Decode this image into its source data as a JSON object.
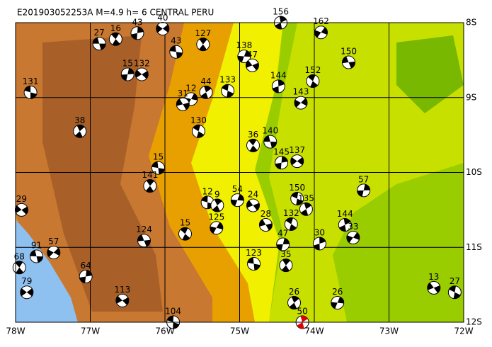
{
  "chart_data": {
    "type": "focal-map",
    "title": "E201903052253A M=4.9 h= 6 CENTRAL PERU",
    "xlim": [
      -78,
      -72
    ],
    "ylim": [
      -12,
      -8
    ],
    "xticks": [
      {
        "value": -78,
        "label": "78W"
      },
      {
        "value": -77,
        "label": "77W"
      },
      {
        "value": -76,
        "label": "76W"
      },
      {
        "value": -75,
        "label": "75W"
      },
      {
        "value": -74,
        "label": "74W"
      },
      {
        "value": -73,
        "label": "73W"
      },
      {
        "value": -72,
        "label": "72W"
      }
    ],
    "yticks": [
      {
        "value": -8,
        "label": "8S"
      },
      {
        "value": -9,
        "label": "9S"
      },
      {
        "value": -10,
        "label": "10S"
      },
      {
        "value": -11,
        "label": "11S"
      },
      {
        "value": -12,
        "label": "12S"
      }
    ],
    "grid": true,
    "events": [
      {
        "lon": -76.88,
        "lat": -8.28,
        "depth": 27
      },
      {
        "lon": -76.66,
        "lat": -8.22,
        "depth": 16
      },
      {
        "lon": -76.37,
        "lat": -8.14,
        "depth": 43
      },
      {
        "lon": -76.03,
        "lat": -8.08,
        "depth": 40
      },
      {
        "lon": -75.85,
        "lat": -8.39,
        "depth": 43
      },
      {
        "lon": -75.49,
        "lat": -8.29,
        "depth": 127
      },
      {
        "lon": -76.5,
        "lat": -8.69,
        "depth": 15
      },
      {
        "lon": -76.31,
        "lat": -8.69,
        "depth": 132
      },
      {
        "lon": -77.8,
        "lat": -8.93,
        "depth": 131
      },
      {
        "lon": -77.14,
        "lat": -9.45,
        "depth": 38
      },
      {
        "lon": -74.94,
        "lat": -8.45,
        "depth": 138
      },
      {
        "lon": -74.83,
        "lat": -8.57,
        "depth": 47
      },
      {
        "lon": -75.16,
        "lat": -8.91,
        "depth": 133
      },
      {
        "lon": -75.45,
        "lat": -8.93,
        "depth": 44
      },
      {
        "lon": -75.65,
        "lat": -9.02,
        "depth": 12
      },
      {
        "lon": -75.76,
        "lat": -9.09,
        "depth": 31
      },
      {
        "lon": -75.55,
        "lat": -9.45,
        "depth": 130
      },
      {
        "lon": -74.45,
        "lat": -8.0,
        "depth": 156
      },
      {
        "lon": -73.91,
        "lat": -8.13,
        "depth": 162
      },
      {
        "lon": -73.54,
        "lat": -8.53,
        "depth": 150
      },
      {
        "lon": -74.02,
        "lat": -8.78,
        "depth": 152
      },
      {
        "lon": -74.48,
        "lat": -8.85,
        "depth": 144
      },
      {
        "lon": -74.18,
        "lat": -9.07,
        "depth": 143
      },
      {
        "lon": -74.59,
        "lat": -9.59,
        "depth": 140
      },
      {
        "lon": -74.82,
        "lat": -9.64,
        "depth": 36
      },
      {
        "lon": -74.44,
        "lat": -9.87,
        "depth": 145
      },
      {
        "lon": -74.23,
        "lat": -9.85,
        "depth": 137
      },
      {
        "lon": -76.09,
        "lat": -9.94,
        "depth": 15
      },
      {
        "lon": -76.2,
        "lat": -10.18,
        "depth": 141
      },
      {
        "lon": -73.34,
        "lat": -10.24,
        "depth": 57
      },
      {
        "lon": -77.92,
        "lat": -10.5,
        "depth": 29
      },
      {
        "lon": -75.43,
        "lat": -10.4,
        "depth": 12
      },
      {
        "lon": -75.3,
        "lat": -10.44,
        "depth": 9
      },
      {
        "lon": -75.03,
        "lat": -10.37,
        "depth": 54
      },
      {
        "lon": -74.82,
        "lat": -10.44,
        "depth": 24
      },
      {
        "lon": -74.23,
        "lat": -10.35,
        "depth": 150
      },
      {
        "lon": -74.11,
        "lat": -10.49,
        "depth": 135
      },
      {
        "lon": -75.31,
        "lat": -10.74,
        "depth": 125
      },
      {
        "lon": -74.65,
        "lat": -10.7,
        "depth": 28
      },
      {
        "lon": -74.31,
        "lat": -10.69,
        "depth": 132
      },
      {
        "lon": -73.59,
        "lat": -10.7,
        "depth": 144
      },
      {
        "lon": -73.48,
        "lat": -10.87,
        "depth": 33
      },
      {
        "lon": -76.28,
        "lat": -10.91,
        "depth": 124
      },
      {
        "lon": -75.73,
        "lat": -10.82,
        "depth": 15
      },
      {
        "lon": -73.93,
        "lat": -10.95,
        "depth": 30
      },
      {
        "lon": -77.49,
        "lat": -11.07,
        "depth": 57
      },
      {
        "lon": -77.72,
        "lat": -11.12,
        "depth": 91
      },
      {
        "lon": -77.95,
        "lat": -11.27,
        "depth": 68
      },
      {
        "lon": -77.06,
        "lat": -11.39,
        "depth": 64
      },
      {
        "lon": -77.85,
        "lat": -11.6,
        "depth": 79
      },
      {
        "lon": -74.81,
        "lat": -11.22,
        "depth": 123
      },
      {
        "lon": -74.38,
        "lat": -11.24,
        "depth": 35
      },
      {
        "lon": -74.42,
        "lat": -10.96,
        "depth": 47
      },
      {
        "lon": -76.57,
        "lat": -11.71,
        "depth": 113
      },
      {
        "lon": -75.89,
        "lat": -12.0,
        "depth": 104
      },
      {
        "lon": -74.27,
        "lat": -11.74,
        "depth": 26
      },
      {
        "lon": -73.69,
        "lat": -11.74,
        "depth": 26
      },
      {
        "lon": -72.4,
        "lat": -11.54,
        "depth": 13
      },
      {
        "lon": -72.12,
        "lat": -11.6,
        "depth": 27
      },
      {
        "lon": -74.16,
        "lat": -12.0,
        "depth": 50,
        "color": "#e00000"
      }
    ]
  }
}
